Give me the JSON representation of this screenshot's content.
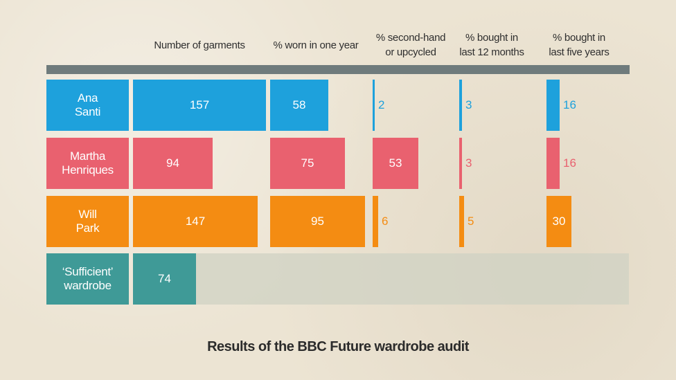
{
  "chart_data": {
    "type": "table",
    "title": "Results of the BBC Future wardrobe audit",
    "columns": [
      {
        "key": "garments",
        "label": "Number of garments"
      },
      {
        "key": "worn",
        "label": "% worn in one year"
      },
      {
        "key": "second_hand",
        "label": "% second-hand\nor upcycled"
      },
      {
        "key": "bought_12m",
        "label": "% bought in\nlast 12 months"
      },
      {
        "key": "bought_5y",
        "label": "% bought in\nlast five years"
      }
    ],
    "rows": [
      {
        "name": "Ana\nSanti",
        "color": "#1ea1dc",
        "values": {
          "garments": 157,
          "worn": 58,
          "second_hand": 2,
          "bought_12m": 3,
          "bought_5y": 16
        }
      },
      {
        "name": "Martha\nHenriques",
        "color": "#e9616f",
        "values": {
          "garments": 94,
          "worn": 75,
          "second_hand": 53,
          "bought_12m": 3,
          "bought_5y": 16
        }
      },
      {
        "name": "Will\nPark",
        "color": "#f48c12",
        "values": {
          "garments": 147,
          "worn": 95,
          "second_hand": 6,
          "bought_12m": 5,
          "bought_5y": 30
        }
      },
      {
        "name": "‘Sufficient’\nwardrobe",
        "color": "#3f9a97",
        "values": {
          "garments": 74
        }
      }
    ],
    "colors": {
      "divider": "#6f7b7c",
      "band": "#cfd1c3",
      "text": "#2e2e2e"
    }
  }
}
